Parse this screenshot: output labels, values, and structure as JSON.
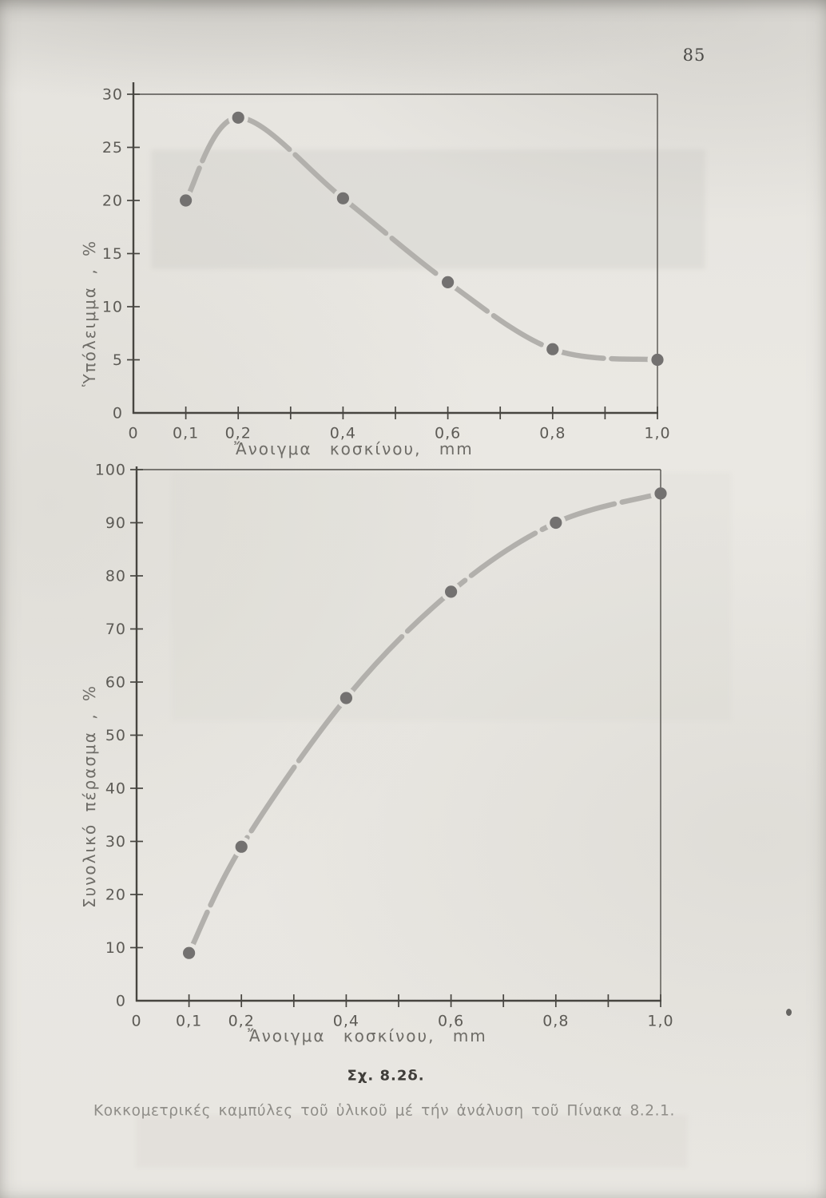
{
  "page": {
    "number": "85",
    "caption_title": "Σχ. 8.2δ.",
    "caption_text": "Κοκκομετρικές καμπύλες τοῦ ὑλικοῦ μέ τήν ἀνάλυση τοῦ Πίνακα 8.2.1."
  },
  "colors": {
    "paper": "#e9e7e2",
    "axis": "#474540",
    "border": "#55534e",
    "tick_label": "#5d5b56",
    "curve": "#b2b0ac",
    "dot": "#737170",
    "axis_label": "#6e6c67",
    "caption_title": "#3f3d39",
    "caption_text": "#8f8d88",
    "page_number": "#4b4a47"
  },
  "chart_data": [
    {
      "type": "line",
      "title": "",
      "xlabel": "Ἄνοιγμα κοσκίνου, mm",
      "ylabel": "Ὑπόλειμμα , %",
      "x": [
        0.1,
        0.2,
        0.4,
        0.6,
        0.8,
        1.0
      ],
      "y": [
        20,
        27.8,
        20.2,
        12.3,
        6,
        5
      ],
      "xlim": [
        0,
        1.0
      ],
      "ylim": [
        0,
        30
      ],
      "grid": false,
      "legend": "none",
      "marker": "filled-circle",
      "x_ticks": [
        {
          "v": 0,
          "label": "0"
        },
        {
          "v": 0.1,
          "label": "0,1"
        },
        {
          "v": 0.2,
          "label": "0,2"
        },
        {
          "v": 0.3
        },
        {
          "v": 0.4,
          "label": "0,4"
        },
        {
          "v": 0.5
        },
        {
          "v": 0.6,
          "label": "0,6"
        },
        {
          "v": 0.7
        },
        {
          "v": 0.8,
          "label": "0,8"
        },
        {
          "v": 0.9
        },
        {
          "v": 1.0,
          "label": "1,0"
        }
      ],
      "y_ticks": [
        {
          "v": 0,
          "label": "0"
        },
        {
          "v": 5,
          "label": "5"
        },
        {
          "v": 10,
          "label": "10"
        },
        {
          "v": 15,
          "label": "15"
        },
        {
          "v": 20,
          "label": "20"
        },
        {
          "v": 25,
          "label": "25"
        },
        {
          "v": 30,
          "label": "30"
        }
      ]
    },
    {
      "type": "line",
      "title": "",
      "xlabel": "Ἄνοιγμα κοσκίνου, mm",
      "ylabel": "Συνολικό πέρασμα , %",
      "x": [
        0.1,
        0.2,
        0.4,
        0.6,
        0.8,
        1.0
      ],
      "y": [
        9,
        29,
        57,
        77,
        90,
        95.5
      ],
      "xlim": [
        0,
        1.0
      ],
      "ylim": [
        0,
        100
      ],
      "grid": false,
      "legend": "none",
      "marker": "filled-circle",
      "x_ticks": [
        {
          "v": 0,
          "label": "0"
        },
        {
          "v": 0.1,
          "label": "0,1"
        },
        {
          "v": 0.2,
          "label": "0,2"
        },
        {
          "v": 0.3
        },
        {
          "v": 0.4,
          "label": "0,4"
        },
        {
          "v": 0.5
        },
        {
          "v": 0.6,
          "label": "0,6"
        },
        {
          "v": 0.7
        },
        {
          "v": 0.8,
          "label": "0,8"
        },
        {
          "v": 0.9
        },
        {
          "v": 1.0,
          "label": "1,0"
        }
      ],
      "y_ticks": [
        {
          "v": 0,
          "label": "0"
        },
        {
          "v": 10,
          "label": "10"
        },
        {
          "v": 20,
          "label": "20"
        },
        {
          "v": 30,
          "label": "30"
        },
        {
          "v": 40,
          "label": "40"
        },
        {
          "v": 50,
          "label": "50"
        },
        {
          "v": 60,
          "label": "60"
        },
        {
          "v": 70,
          "label": "70"
        },
        {
          "v": 80,
          "label": "80"
        },
        {
          "v": 90,
          "label": "90"
        },
        {
          "v": 100,
          "label": "100"
        }
      ]
    }
  ]
}
